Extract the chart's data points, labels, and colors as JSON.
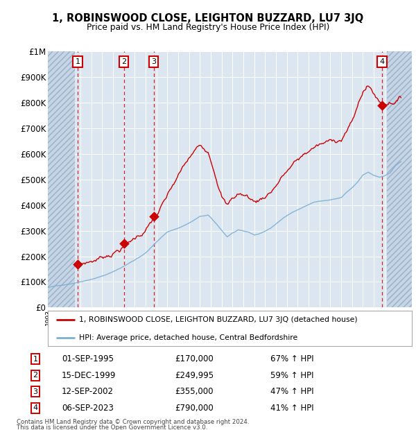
{
  "title": "1, ROBINSWOOD CLOSE, LEIGHTON BUZZARD, LU7 3JQ",
  "subtitle": "Price paid vs. HM Land Registry's House Price Index (HPI)",
  "sales": [
    {
      "index": 1,
      "year": 1995.75,
      "price": 170000,
      "date": "01-SEP-1995",
      "pct": "67% ↑ HPI"
    },
    {
      "index": 2,
      "year": 2000.0,
      "price": 249995,
      "date": "15-DEC-1999",
      "pct": "59% ↑ HPI"
    },
    {
      "index": 3,
      "year": 2002.75,
      "price": 355000,
      "date": "12-SEP-2002",
      "pct": "47% ↑ HPI"
    },
    {
      "index": 4,
      "year": 2023.75,
      "price": 790000,
      "date": "06-SEP-2023",
      "pct": "41% ↑ HPI"
    }
  ],
  "legend_label_red": "1, ROBINSWOOD CLOSE, LEIGHTON BUZZARD, LU7 3JQ (detached house)",
  "legend_label_blue": "HPI: Average price, detached house, Central Bedfordshire",
  "footer1": "Contains HM Land Registry data © Crown copyright and database right 2024.",
  "footer2": "This data is licensed under the Open Government Licence v3.0.",
  "xmin": 1993.0,
  "xmax": 2026.5,
  "ymin": 0,
  "ymax": 1000000,
  "hatch_xmin": 1993.0,
  "hatch_xmax": 1995.5,
  "hatch_xmin2": 2024.2,
  "hatch_xmax2": 2026.5,
  "red_color": "#cc0000",
  "blue_color": "#7aafd4",
  "plot_bg_color": "#dce6f1",
  "grid_color": "#ffffff"
}
